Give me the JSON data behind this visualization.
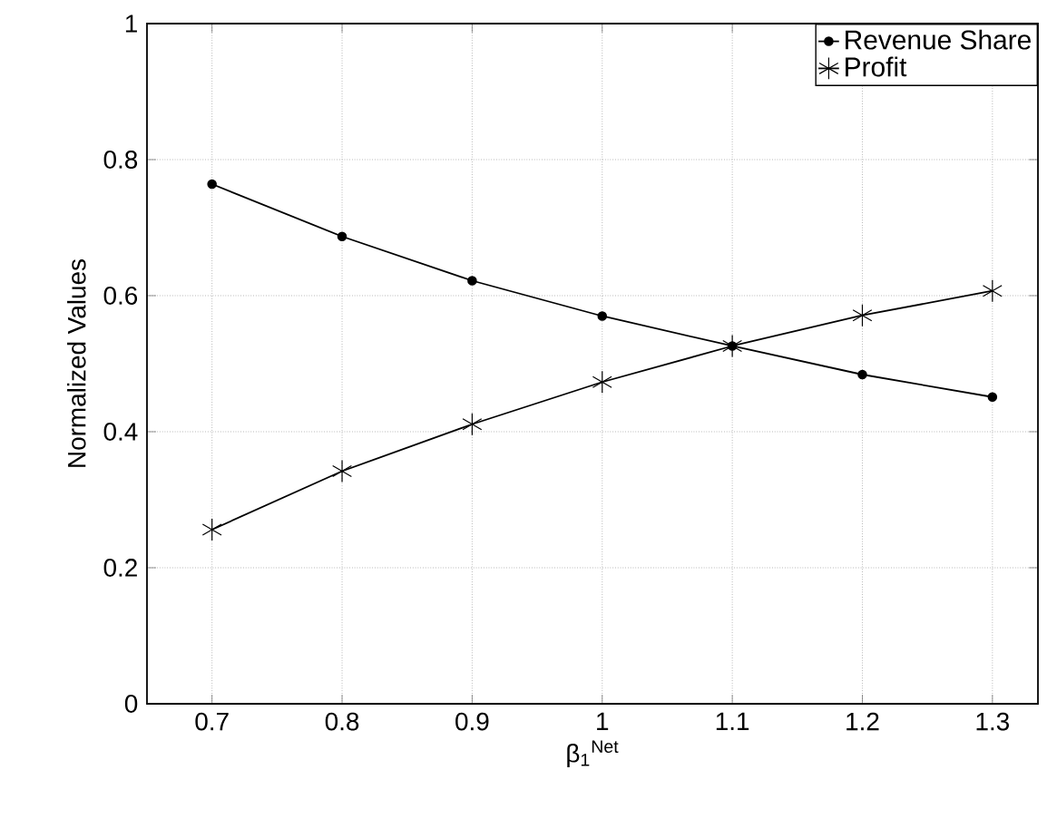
{
  "chart_data": {
    "type": "line",
    "xlabel": "β$_{1}$$^{Net}$",
    "ylabel": "Normalized Values",
    "x": [
      0.7,
      0.8,
      0.9,
      1.0,
      1.1,
      1.2,
      1.3
    ],
    "series": [
      {
        "name": "Revenue Share",
        "color": "#000000",
        "marker": "circle",
        "values": [
          0.764,
          0.687,
          0.622,
          0.57,
          0.526,
          0.484,
          0.451
        ]
      },
      {
        "name": "Profit",
        "color": "#000000",
        "marker": "cross",
        "values": [
          0.256,
          0.342,
          0.411,
          0.473,
          0.526,
          0.571,
          0.607
        ]
      }
    ],
    "xlim": [
      0.65,
      1.335
    ],
    "ylim": [
      0,
      1
    ],
    "xticks": [
      0.7,
      0.8,
      0.9,
      1,
      1.1,
      1.2,
      1.3
    ],
    "yticks": [
      0,
      0.2,
      0.4,
      0.6,
      0.8,
      1
    ],
    "grid": true,
    "legend": "top right",
    "line_style": "solid"
  }
}
